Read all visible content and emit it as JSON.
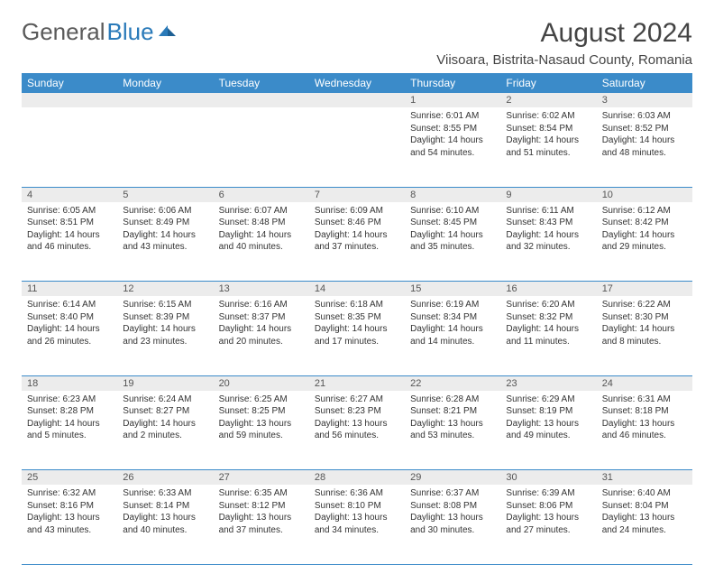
{
  "brand": {
    "part1": "General",
    "part2": "Blue"
  },
  "title": "August 2024",
  "location": "Viisoara, Bistrita-Nasaud County, Romania",
  "colors": {
    "header_bg": "#3b8bc9",
    "header_text": "#ffffff",
    "daynum_bg": "#ececec",
    "cell_border": "#3b8bc9",
    "body_text": "#333333",
    "logo_gray": "#5a5a5a",
    "logo_blue": "#2a7ab9"
  },
  "weekdays": [
    "Sunday",
    "Monday",
    "Tuesday",
    "Wednesday",
    "Thursday",
    "Friday",
    "Saturday"
  ],
  "weeks": [
    [
      null,
      null,
      null,
      null,
      {
        "n": "1",
        "sr": "6:01 AM",
        "ss": "8:55 PM",
        "dl": "14 hours and 54 minutes."
      },
      {
        "n": "2",
        "sr": "6:02 AM",
        "ss": "8:54 PM",
        "dl": "14 hours and 51 minutes."
      },
      {
        "n": "3",
        "sr": "6:03 AM",
        "ss": "8:52 PM",
        "dl": "14 hours and 48 minutes."
      }
    ],
    [
      {
        "n": "4",
        "sr": "6:05 AM",
        "ss": "8:51 PM",
        "dl": "14 hours and 46 minutes."
      },
      {
        "n": "5",
        "sr": "6:06 AM",
        "ss": "8:49 PM",
        "dl": "14 hours and 43 minutes."
      },
      {
        "n": "6",
        "sr": "6:07 AM",
        "ss": "8:48 PM",
        "dl": "14 hours and 40 minutes."
      },
      {
        "n": "7",
        "sr": "6:09 AM",
        "ss": "8:46 PM",
        "dl": "14 hours and 37 minutes."
      },
      {
        "n": "8",
        "sr": "6:10 AM",
        "ss": "8:45 PM",
        "dl": "14 hours and 35 minutes."
      },
      {
        "n": "9",
        "sr": "6:11 AM",
        "ss": "8:43 PM",
        "dl": "14 hours and 32 minutes."
      },
      {
        "n": "10",
        "sr": "6:12 AM",
        "ss": "8:42 PM",
        "dl": "14 hours and 29 minutes."
      }
    ],
    [
      {
        "n": "11",
        "sr": "6:14 AM",
        "ss": "8:40 PM",
        "dl": "14 hours and 26 minutes."
      },
      {
        "n": "12",
        "sr": "6:15 AM",
        "ss": "8:39 PM",
        "dl": "14 hours and 23 minutes."
      },
      {
        "n": "13",
        "sr": "6:16 AM",
        "ss": "8:37 PM",
        "dl": "14 hours and 20 minutes."
      },
      {
        "n": "14",
        "sr": "6:18 AM",
        "ss": "8:35 PM",
        "dl": "14 hours and 17 minutes."
      },
      {
        "n": "15",
        "sr": "6:19 AM",
        "ss": "8:34 PM",
        "dl": "14 hours and 14 minutes."
      },
      {
        "n": "16",
        "sr": "6:20 AM",
        "ss": "8:32 PM",
        "dl": "14 hours and 11 minutes."
      },
      {
        "n": "17",
        "sr": "6:22 AM",
        "ss": "8:30 PM",
        "dl": "14 hours and 8 minutes."
      }
    ],
    [
      {
        "n": "18",
        "sr": "6:23 AM",
        "ss": "8:28 PM",
        "dl": "14 hours and 5 minutes."
      },
      {
        "n": "19",
        "sr": "6:24 AM",
        "ss": "8:27 PM",
        "dl": "14 hours and 2 minutes."
      },
      {
        "n": "20",
        "sr": "6:25 AM",
        "ss": "8:25 PM",
        "dl": "13 hours and 59 minutes."
      },
      {
        "n": "21",
        "sr": "6:27 AM",
        "ss": "8:23 PM",
        "dl": "13 hours and 56 minutes."
      },
      {
        "n": "22",
        "sr": "6:28 AM",
        "ss": "8:21 PM",
        "dl": "13 hours and 53 minutes."
      },
      {
        "n": "23",
        "sr": "6:29 AM",
        "ss": "8:19 PM",
        "dl": "13 hours and 49 minutes."
      },
      {
        "n": "24",
        "sr": "6:31 AM",
        "ss": "8:18 PM",
        "dl": "13 hours and 46 minutes."
      }
    ],
    [
      {
        "n": "25",
        "sr": "6:32 AM",
        "ss": "8:16 PM",
        "dl": "13 hours and 43 minutes."
      },
      {
        "n": "26",
        "sr": "6:33 AM",
        "ss": "8:14 PM",
        "dl": "13 hours and 40 minutes."
      },
      {
        "n": "27",
        "sr": "6:35 AM",
        "ss": "8:12 PM",
        "dl": "13 hours and 37 minutes."
      },
      {
        "n": "28",
        "sr": "6:36 AM",
        "ss": "8:10 PM",
        "dl": "13 hours and 34 minutes."
      },
      {
        "n": "29",
        "sr": "6:37 AM",
        "ss": "8:08 PM",
        "dl": "13 hours and 30 minutes."
      },
      {
        "n": "30",
        "sr": "6:39 AM",
        "ss": "8:06 PM",
        "dl": "13 hours and 27 minutes."
      },
      {
        "n": "31",
        "sr": "6:40 AM",
        "ss": "8:04 PM",
        "dl": "13 hours and 24 minutes."
      }
    ]
  ],
  "labels": {
    "sunrise": "Sunrise: ",
    "sunset": "Sunset: ",
    "daylight": "Daylight: "
  }
}
